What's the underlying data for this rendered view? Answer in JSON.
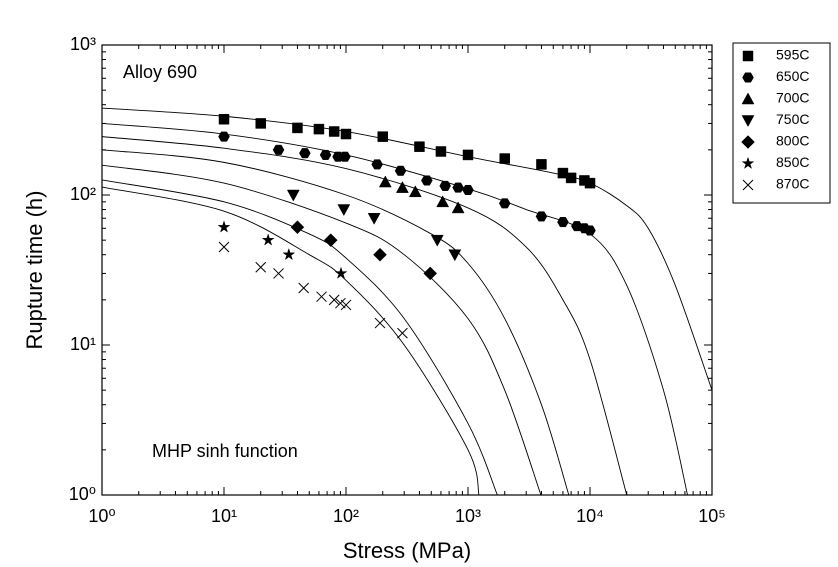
{
  "chart_data": {
    "type": "scatter",
    "log_x": true,
    "log_y": true,
    "minor_ticks": true,
    "legend": "outside-right",
    "x_label": "Stress (MPa)",
    "y_label": "Rupture time (h)",
    "annotations": [
      "Alloy 690",
      "MHP sinh function"
    ],
    "xlim": [
      1,
      100000
    ],
    "ylim": [
      1,
      1000
    ],
    "xticks": [
      {
        "value": 1,
        "label": "10⁰"
      },
      {
        "value": 10,
        "label": "10¹"
      },
      {
        "value": 100,
        "label": "10²"
      },
      {
        "value": 1000,
        "label": "10³"
      },
      {
        "value": 10000,
        "label": "10⁴"
      },
      {
        "value": 100000,
        "label": "10⁵"
      }
    ],
    "yticks": [
      {
        "value": 1,
        "label": "10⁰"
      },
      {
        "value": 10,
        "label": "10¹"
      },
      {
        "value": 100,
        "label": "10²"
      },
      {
        "value": 1000,
        "label": "10³"
      }
    ],
    "series": [
      {
        "name": "595C",
        "color": "#000000",
        "marker": "square",
        "x": [
          10,
          20,
          40,
          60,
          80,
          100,
          200,
          400,
          600,
          1000,
          2000,
          4000,
          6000,
          7000,
          9000,
          10000
        ],
        "values": [
          320,
          300,
          280,
          275,
          265,
          255,
          245,
          210,
          195,
          185,
          175,
          160,
          140,
          130,
          125,
          120
        ]
      },
      {
        "name": "650C",
        "color": "#000000",
        "marker": "hexagon",
        "x": [
          10,
          28,
          46,
          68,
          86,
          98,
          180,
          280,
          460,
          650,
          830,
          1000,
          2000,
          4000,
          6000,
          7800,
          9000,
          10000
        ],
        "values": [
          245,
          200,
          190,
          185,
          180,
          180,
          160,
          145,
          125,
          115,
          112,
          108,
          88,
          72,
          66,
          62,
          60,
          58
        ]
      },
      {
        "name": "700C",
        "color": "#000000",
        "marker": "triangle-up",
        "x": [
          210,
          290,
          370,
          620,
          830
        ],
        "values": [
          122,
          112,
          105,
          90,
          82
        ]
      },
      {
        "name": "750C",
        "color": "#000000",
        "marker": "triangle-down",
        "x": [
          37,
          96,
          170,
          560,
          780
        ],
        "values": [
          100,
          80,
          70,
          50,
          40
        ]
      },
      {
        "name": "800C",
        "color": "#000000",
        "marker": "diamond",
        "x": [
          40,
          75,
          190,
          490
        ],
        "values": [
          61,
          50,
          40,
          30
        ]
      },
      {
        "name": "850C",
        "color": "#000000",
        "marker": "star",
        "x": [
          10,
          23,
          34,
          91
        ],
        "values": [
          61,
          50,
          40,
          30
        ]
      },
      {
        "name": "870C",
        "color": "#000000",
        "marker": "x",
        "x": [
          10,
          20,
          28,
          45,
          63,
          80,
          90,
          100,
          190,
          290
        ],
        "values": [
          45,
          33,
          30,
          24,
          21,
          20,
          19,
          18.5,
          14,
          12
        ]
      }
    ],
    "fit_curves": [
      {
        "x": [
          1,
          10,
          100,
          1000,
          5000,
          10000,
          20000,
          30000,
          50000,
          100000
        ],
        "y": [
          380,
          335,
          265,
          180,
          140,
          120,
          85,
          60,
          25,
          5
        ]
      },
      {
        "x": [
          1,
          10,
          100,
          1000,
          3000,
          10000,
          20000,
          40000,
          63000
        ],
        "y": [
          300,
          255,
          185,
          110,
          80,
          55,
          25,
          5,
          1
        ]
      },
      {
        "x": [
          1,
          10,
          100,
          1000,
          3000,
          6000,
          10000,
          20000
        ],
        "y": [
          245,
          205,
          150,
          82,
          45,
          20,
          8,
          1
        ]
      },
      {
        "x": [
          1,
          10,
          100,
          500,
          1000,
          2000,
          4000,
          6700
        ],
        "y": [
          200,
          165,
          100,
          55,
          35,
          15,
          4,
          1
        ]
      },
      {
        "x": [
          1,
          10,
          100,
          300,
          1000,
          2000,
          3960
        ],
        "y": [
          158,
          120,
          65,
          40,
          15,
          5,
          1
        ]
      },
      {
        "x": [
          1,
          10,
          50,
          100,
          300,
          1000,
          1740
        ],
        "y": [
          126,
          90,
          55,
          38,
          15,
          3,
          1
        ]
      },
      {
        "x": [
          1,
          10,
          50,
          100,
          300,
          1000,
          1230
        ],
        "y": [
          113,
          78,
          40,
          27,
          10,
          2,
          1
        ]
      }
    ]
  }
}
